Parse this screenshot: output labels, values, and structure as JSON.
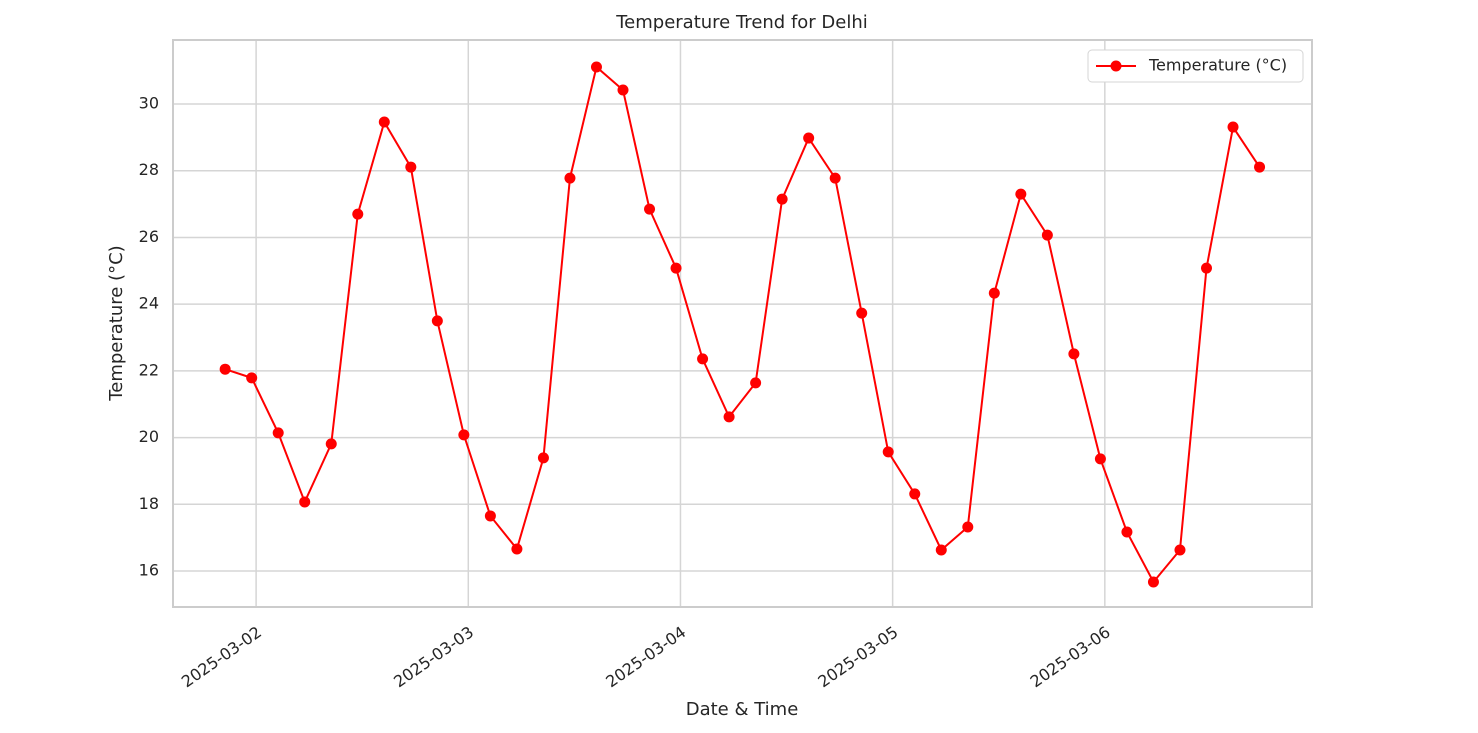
{
  "chart_data": {
    "type": "line",
    "title": "Temperature Trend for Delhi",
    "x_label": "Date & Time",
    "y_label": "Temperature (°C)",
    "x": [
      "2025-03-01 20:30",
      "2025-03-01 23:30",
      "2025-03-02 02:30",
      "2025-03-02 05:30",
      "2025-03-02 08:30",
      "2025-03-02 11:30",
      "2025-03-02 14:30",
      "2025-03-02 17:30",
      "2025-03-02 20:30",
      "2025-03-02 23:30",
      "2025-03-03 02:30",
      "2025-03-03 05:30",
      "2025-03-03 08:30",
      "2025-03-03 11:30",
      "2025-03-03 14:30",
      "2025-03-03 17:30",
      "2025-03-03 20:30",
      "2025-03-03 23:30",
      "2025-03-04 02:30",
      "2025-03-04 05:30",
      "2025-03-04 08:30",
      "2025-03-04 11:30",
      "2025-03-04 14:30",
      "2025-03-04 17:30",
      "2025-03-04 20:30",
      "2025-03-04 23:30",
      "2025-03-05 02:30",
      "2025-03-05 05:30",
      "2025-03-05 08:30",
      "2025-03-05 11:30",
      "2025-03-05 14:30",
      "2025-03-05 17:30",
      "2025-03-05 20:30",
      "2025-03-05 23:30",
      "2025-03-06 02:30",
      "2025-03-06 05:30",
      "2025-03-06 08:30",
      "2025-03-06 11:30",
      "2025-03-06 14:30",
      "2025-03-06 17:30"
    ],
    "series": [
      {
        "name": "Temperature (°C)",
        "color": "#ff0000",
        "values": [
          22.05,
          21.79,
          20.14,
          18.07,
          19.81,
          26.7,
          29.46,
          28.11,
          23.5,
          20.08,
          17.65,
          16.66,
          19.39,
          27.78,
          31.11,
          30.42,
          26.85,
          25.08,
          22.36,
          20.62,
          21.64,
          27.15,
          28.98,
          27.78,
          23.73,
          19.57,
          18.31,
          16.63,
          17.32,
          24.33,
          27.3,
          26.07,
          22.51,
          19.36,
          17.17,
          15.67,
          16.63,
          25.08,
          29.31,
          28.11
        ]
      }
    ],
    "xlim": [
      "2025-03-01 14:36",
      "2025-03-06 23:26"
    ],
    "xticks": [
      "2025-03-02",
      "2025-03-03",
      "2025-03-04",
      "2025-03-05",
      "2025-03-06"
    ],
    "ylim": [
      14.92,
      31.92
    ],
    "yticks": [
      16,
      18,
      20,
      22,
      24,
      26,
      28,
      30
    ],
    "grid": true,
    "legend": "upper right",
    "marker": "circle"
  }
}
